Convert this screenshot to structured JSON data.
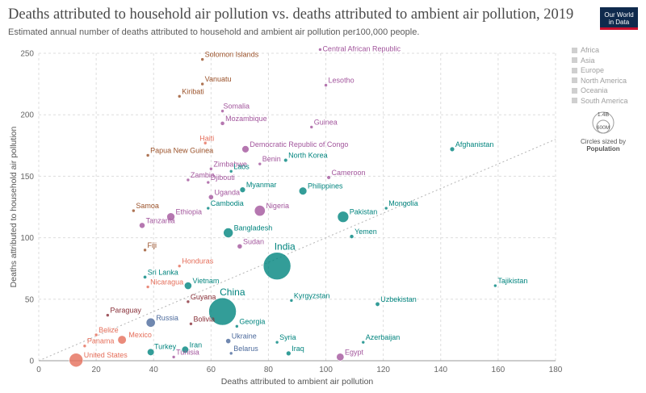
{
  "header": {
    "title": "Deaths attributed to household air pollution vs. deaths attributed to ambient air pollution, 2019",
    "subtitle": "Estimated annual number of deaths attributed to household and ambient air pollution per100,000 people.",
    "logo_line1": "Our World",
    "logo_line2": "in Data"
  },
  "legend": {
    "items": [
      "Africa",
      "Asia",
      "Europe",
      "North America",
      "Oceania",
      "South America"
    ],
    "size_scale_top": "1.4B",
    "size_scale_bottom": "600M",
    "size_caption": "Circles sized by",
    "size_caption_bold": "Population"
  },
  "colors": {
    "Africa": "#a2559c",
    "Asia": "#00847e",
    "Europe": "#4c6a9c",
    "North America": "#e56e5a",
    "Oceania": "#9a5129",
    "South America": "#883039"
  },
  "chart_data": {
    "type": "scatter",
    "title": "Deaths attributed to household air pollution vs. deaths attributed to ambient air pollution, 2019",
    "xlabel": "Deaths attributed to ambient air pollution",
    "ylabel": "Deaths attributed to household air pollution",
    "xlim": [
      0,
      180
    ],
    "ylim": [
      0,
      250
    ],
    "xticks": [
      0,
      20,
      40,
      60,
      80,
      100,
      120,
      140,
      160,
      180
    ],
    "yticks": [
      0,
      50,
      100,
      150,
      200,
      250
    ],
    "grid": true,
    "diagonal_reference_line": true,
    "legend_position": "right",
    "points": [
      {
        "label": "Solomon Islands",
        "x": 57,
        "y": 245,
        "region": "Oceania",
        "pop": 0.7,
        "lx": 1,
        "ly": -3
      },
      {
        "label": "Central African Republic",
        "x": 98,
        "y": 253,
        "region": "Africa",
        "pop": 4.7,
        "lx": 1,
        "ly": 2
      },
      {
        "label": "Vanuatu",
        "x": 57,
        "y": 225,
        "region": "Oceania",
        "pop": 0.3,
        "lx": 1,
        "ly": -3
      },
      {
        "label": "Lesotho",
        "x": 100,
        "y": 224,
        "region": "Africa",
        "pop": 2.1,
        "lx": 1,
        "ly": -3
      },
      {
        "label": "Kiribati",
        "x": 49,
        "y": 215,
        "region": "Oceania",
        "pop": 0.1,
        "lx": 1,
        "ly": -3
      },
      {
        "label": "Somalia",
        "x": 64,
        "y": 203,
        "region": "Africa",
        "pop": 15.4,
        "lx": -1,
        "ly": -3
      },
      {
        "label": "Mozambique",
        "x": 64,
        "y": 193,
        "region": "Africa",
        "pop": 30.4,
        "lx": 1,
        "ly": -3
      },
      {
        "label": "Guinea",
        "x": 95,
        "y": 190,
        "region": "Africa",
        "pop": 12.8,
        "lx": 1,
        "ly": -3
      },
      {
        "label": "Haiti",
        "x": 58,
        "y": 177,
        "region": "North America",
        "pop": 11.3,
        "lx": -9,
        "ly": -3
      },
      {
        "label": "Afghanistan",
        "x": 144,
        "y": 172,
        "region": "Asia",
        "pop": 38.0,
        "lx": 1,
        "ly": -3
      },
      {
        "label": "Democratic Republic of Congo",
        "x": 72,
        "y": 172,
        "region": "Africa",
        "pop": 86.8,
        "lx": 1,
        "ly": -3
      },
      {
        "label": "Papua New Guinea",
        "x": 38,
        "y": 167,
        "region": "Oceania",
        "pop": 8.8,
        "lx": 1,
        "ly": -3
      },
      {
        "label": "North Korea",
        "x": 86,
        "y": 163,
        "region": "Asia",
        "pop": 25.7,
        "lx": 1,
        "ly": -3
      },
      {
        "label": "Benin",
        "x": 77,
        "y": 160,
        "region": "Africa",
        "pop": 11.8,
        "lx": 1,
        "ly": -3
      },
      {
        "label": "Zimbabwe",
        "x": 60,
        "y": 156,
        "region": "Africa",
        "pop": 14.6,
        "lx": 1,
        "ly": -3
      },
      {
        "label": "Laos",
        "x": 67,
        "y": 154,
        "region": "Asia",
        "pop": 7.2,
        "lx": 1,
        "ly": -3
      },
      {
        "label": "Cameroon",
        "x": 101,
        "y": 149,
        "region": "Africa",
        "pop": 25.9,
        "lx": 1,
        "ly": -3
      },
      {
        "label": "Zambia",
        "x": 52,
        "y": 147,
        "region": "Africa",
        "pop": 17.9,
        "lx": 1,
        "ly": -3
      },
      {
        "label": "Djibouti",
        "x": 59,
        "y": 145,
        "region": "Africa",
        "pop": 1.0,
        "lx": 1,
        "ly": -3
      },
      {
        "label": "Myanmar",
        "x": 71,
        "y": 139,
        "region": "Asia",
        "pop": 54.0,
        "lx": 1,
        "ly": -3
      },
      {
        "label": "Philippines",
        "x": 92,
        "y": 138,
        "region": "Asia",
        "pop": 108.1,
        "lx": 1,
        "ly": -3
      },
      {
        "label": "Uganda",
        "x": 60,
        "y": 133,
        "region": "Africa",
        "pop": 44.3,
        "lx": 1,
        "ly": -3
      },
      {
        "label": "Samoa",
        "x": 33,
        "y": 122,
        "region": "Oceania",
        "pop": 0.2,
        "lx": 1,
        "ly": -3
      },
      {
        "label": "Nigeria",
        "x": 77,
        "y": 122,
        "region": "Africa",
        "pop": 201.0,
        "lx": 1,
        "ly": -3
      },
      {
        "label": "Cambodia",
        "x": 59,
        "y": 124,
        "region": "Asia",
        "pop": 16.5,
        "lx": 1,
        "ly": -3
      },
      {
        "label": "Ethiopia",
        "x": 46,
        "y": 117,
        "region": "Africa",
        "pop": 112.1,
        "lx": 1,
        "ly": -3
      },
      {
        "label": "Pakistan",
        "x": 106,
        "y": 117,
        "region": "Asia",
        "pop": 216.6,
        "lx": 1,
        "ly": -3
      },
      {
        "label": "Mongolia",
        "x": 121,
        "y": 124,
        "region": "Asia",
        "pop": 3.2,
        "lx": 1,
        "ly": -3
      },
      {
        "label": "Tanzania",
        "x": 36,
        "y": 110,
        "region": "Africa",
        "pop": 58.0,
        "lx": 1,
        "ly": -3
      },
      {
        "label": "Bangladesh",
        "x": 66,
        "y": 104,
        "region": "Asia",
        "pop": 163.0,
        "lx": 1,
        "ly": -3
      },
      {
        "label": "Yemen",
        "x": 109,
        "y": 101,
        "region": "Asia",
        "pop": 29.2,
        "lx": 1,
        "ly": -3
      },
      {
        "label": "Fiji",
        "x": 37,
        "y": 90,
        "region": "Oceania",
        "pop": 0.9,
        "lx": 1,
        "ly": -3
      },
      {
        "label": "Sudan",
        "x": 70,
        "y": 93,
        "region": "Africa",
        "pop": 42.8,
        "lx": 1,
        "ly": -3
      },
      {
        "label": "India",
        "x": 83,
        "y": 77,
        "region": "Asia",
        "pop": 1366.0,
        "lx": 1,
        "ly": -4
      },
      {
        "label": "Honduras",
        "x": 49,
        "y": 77,
        "region": "North America",
        "pop": 9.7,
        "lx": 1,
        "ly": -3
      },
      {
        "label": "Sri Lanka",
        "x": 37,
        "y": 68,
        "region": "Asia",
        "pop": 21.3,
        "lx": 1,
        "ly": -3
      },
      {
        "label": "Vietnam",
        "x": 52,
        "y": 61,
        "region": "Asia",
        "pop": 96.5,
        "lx": 1,
        "ly": -3
      },
      {
        "label": "Tajikistan",
        "x": 159,
        "y": 61,
        "region": "Asia",
        "pop": 9.3,
        "lx": 1,
        "ly": -3
      },
      {
        "label": "Nicaragua",
        "x": 38,
        "y": 60,
        "region": "North America",
        "pop": 6.5,
        "lx": 1,
        "ly": -3
      },
      {
        "label": "Guyana",
        "x": 52,
        "y": 48,
        "region": "South America",
        "pop": 0.8,
        "lx": 1,
        "ly": -3
      },
      {
        "label": "Kyrgyzstan",
        "x": 88,
        "y": 49,
        "region": "Asia",
        "pop": 6.4,
        "lx": 1,
        "ly": -3
      },
      {
        "label": "Uzbekistan",
        "x": 118,
        "y": 46,
        "region": "Asia",
        "pop": 33.6,
        "lx": 1,
        "ly": -3
      },
      {
        "label": "China",
        "x": 64,
        "y": 40,
        "region": "Asia",
        "pop": 1398.0,
        "lx": 0,
        "ly": -4
      },
      {
        "label": "Paraguay",
        "x": 24,
        "y": 37,
        "region": "South America",
        "pop": 7.0,
        "lx": 1,
        "ly": -3
      },
      {
        "label": "Russia",
        "x": 39,
        "y": 31,
        "region": "Europe",
        "pop": 144.4,
        "lx": 1,
        "ly": -3
      },
      {
        "label": "Bolivia",
        "x": 53,
        "y": 30,
        "region": "South America",
        "pop": 11.5,
        "lx": 1,
        "ly": -3
      },
      {
        "label": "Georgia",
        "x": 69,
        "y": 28,
        "region": "Asia",
        "pop": 3.7,
        "lx": 1,
        "ly": -3
      },
      {
        "label": "Belize",
        "x": 20,
        "y": 21,
        "region": "North America",
        "pop": 0.4,
        "lx": 1,
        "ly": -3
      },
      {
        "label": "Mexico",
        "x": 29,
        "y": 17,
        "region": "North America",
        "pop": 127.6,
        "lx": 3,
        "ly": -3
      },
      {
        "label": "Ukraine",
        "x": 66,
        "y": 16,
        "region": "Europe",
        "pop": 44.4,
        "lx": 1,
        "ly": -3
      },
      {
        "label": "Syria",
        "x": 83,
        "y": 15,
        "region": "Asia",
        "pop": 17.1,
        "lx": 1,
        "ly": -3
      },
      {
        "label": "Azerbaijan",
        "x": 113,
        "y": 15,
        "region": "Asia",
        "pop": 10.0,
        "lx": 1,
        "ly": -3
      },
      {
        "label": "Panama",
        "x": 16,
        "y": 12,
        "region": "North America",
        "pop": 4.2,
        "lx": 1,
        "ly": -3
      },
      {
        "label": "Iran",
        "x": 51,
        "y": 9,
        "region": "Asia",
        "pop": 82.9,
        "lx": 1,
        "ly": -3
      },
      {
        "label": "Turkey",
        "x": 39,
        "y": 7,
        "region": "Asia",
        "pop": 83.4,
        "lx": 0,
        "ly": -4
      },
      {
        "label": "Belarus",
        "x": 67,
        "y": 6,
        "region": "Europe",
        "pop": 9.5,
        "lx": 1,
        "ly": -3
      },
      {
        "label": "Iraq",
        "x": 87,
        "y": 6,
        "region": "Asia",
        "pop": 39.3,
        "lx": 1,
        "ly": -3
      },
      {
        "label": "United States",
        "x": 13,
        "y": 0.5,
        "region": "North America",
        "pop": 328.2,
        "lx": 1,
        "ly": -3
      },
      {
        "label": "Tunisia",
        "x": 47,
        "y": 3,
        "region": "Africa",
        "pop": 11.7,
        "lx": 1,
        "ly": -3
      },
      {
        "label": "Egypt",
        "x": 105,
        "y": 3,
        "region": "Africa",
        "pop": 100.4,
        "lx": 1,
        "ly": -3
      }
    ]
  }
}
